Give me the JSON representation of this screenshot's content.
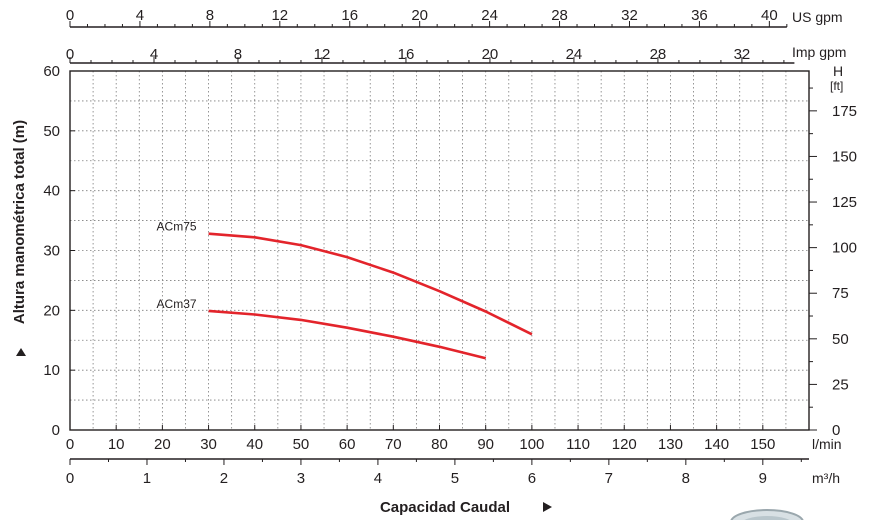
{
  "chart_data": {
    "type": "line",
    "x_unit": "l/min",
    "xlim": [
      0,
      160
    ],
    "ylim": [
      0,
      60
    ],
    "y_unit_right": "H [ft]",
    "ylabel": "Altura manométrica total (m)",
    "xlabel": "Capacidad Caudal",
    "grid": true,
    "axes": {
      "us_gpm": {
        "unit": "US gpm",
        "ticks": [
          0,
          4,
          8,
          12,
          16,
          20,
          24,
          28,
          32,
          36,
          40
        ]
      },
      "imp_gpm": {
        "unit": "Imp gpm",
        "ticks": [
          0,
          4,
          8,
          12,
          16,
          20,
          24,
          28,
          32
        ]
      },
      "lmin": {
        "unit": "l/min",
        "ticks": [
          0,
          10,
          20,
          30,
          40,
          50,
          60,
          70,
          80,
          90,
          100,
          110,
          120,
          130,
          140,
          150
        ]
      },
      "m3h": {
        "unit": "m³/h",
        "ticks": [
          0,
          1,
          2,
          3,
          4,
          5,
          6,
          7,
          8,
          9
        ]
      },
      "meters": {
        "ticks": [
          0,
          10,
          20,
          30,
          40,
          50,
          60
        ]
      },
      "feet": {
        "unit": "H",
        "unit2": "[ft]",
        "ticks": [
          0,
          25,
          50,
          75,
          100,
          125,
          150,
          175
        ]
      }
    },
    "series": [
      {
        "name": "ACm75",
        "color": "#e3242b",
        "x": [
          30,
          40,
          50,
          60,
          70,
          80,
          90,
          100
        ],
        "y": [
          32.8,
          32.2,
          30.9,
          28.9,
          26.3,
          23.2,
          19.8,
          16.0
        ]
      },
      {
        "name": "ACm37",
        "color": "#e3242b",
        "x": [
          30,
          40,
          50,
          60,
          70,
          80,
          90
        ],
        "y": [
          19.9,
          19.3,
          18.4,
          17.1,
          15.6,
          13.9,
          12.0
        ]
      }
    ]
  }
}
